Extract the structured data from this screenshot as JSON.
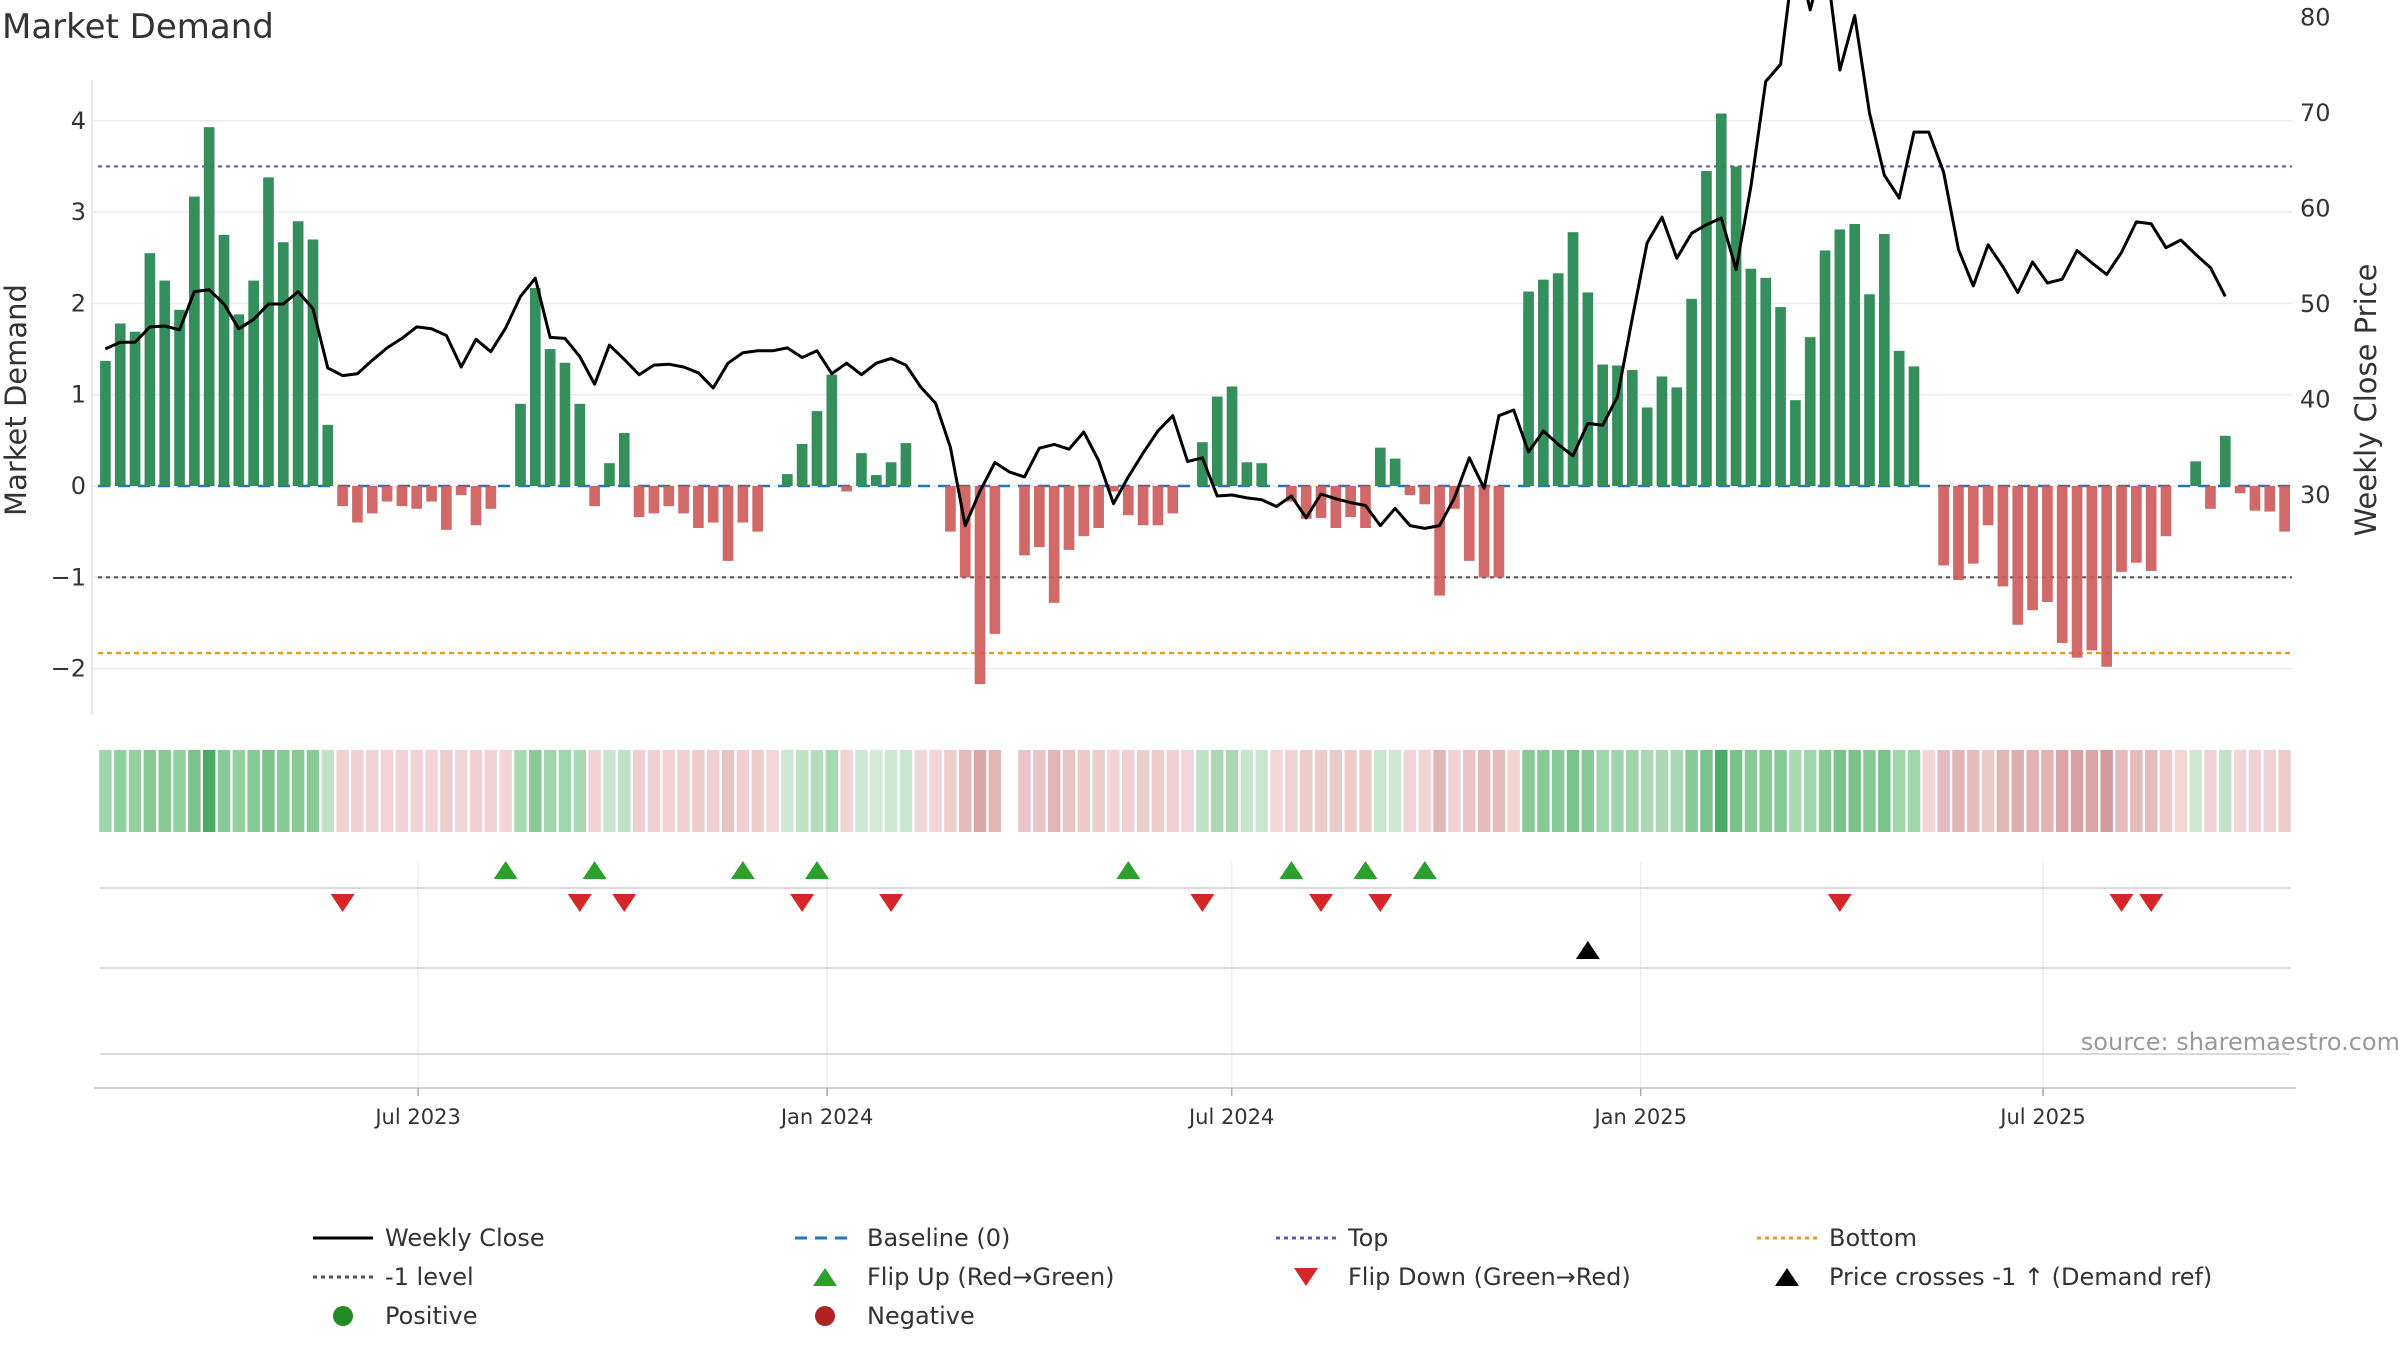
{
  "chart_data": {
    "type": "bar",
    "title": "Market Demand",
    "ylabel_left": "Market Demand",
    "ylabel_right": "Weekly Close Price",
    "ylim_left": [
      -2.6,
      4.2
    ],
    "ylim_right": [
      22.5,
      89
    ],
    "yticks_left": [
      "4",
      "3",
      "2",
      "1",
      "0",
      "−1",
      "−2"
    ],
    "yticks_right": [
      "80",
      "70",
      "60",
      "50",
      "40",
      "30"
    ],
    "x_start": "2023-02-07",
    "x_end": "2025-10-21",
    "date_ticks": [
      "Jul 2023",
      "Jan 2024",
      "Jul 2024",
      "Jan 2025",
      "Jul 2025"
    ],
    "reference_lines": {
      "top": 3.5,
      "minus_one": -1.0,
      "bottom": -1.83,
      "baseline": 0
    },
    "demand": [
      1.37,
      1.78,
      1.69,
      2.55,
      2.25,
      1.93,
      3.17,
      3.93,
      2.75,
      1.88,
      2.25,
      3.38,
      2.67,
      2.9,
      2.7,
      0.67,
      -0.22,
      -0.4,
      -0.3,
      -0.17,
      -0.22,
      -0.25,
      -0.17,
      -0.48,
      -0.1,
      -0.43,
      -0.25,
      0.0,
      0.9,
      2.17,
      1.5,
      1.35,
      0.9,
      -0.22,
      0.25,
      0.58,
      -0.34,
      -0.3,
      -0.22,
      -0.3,
      -0.46,
      -0.4,
      -0.82,
      -0.4,
      -0.5,
      0.0,
      0.13,
      0.46,
      0.82,
      1.22,
      -0.06,
      0.36,
      0.12,
      0.26,
      0.47,
      0.0,
      0.0,
      -0.5,
      -1.0,
      -2.17,
      -1.62,
      0.0,
      -0.76,
      -0.67,
      -1.28,
      -0.7,
      -0.55,
      -0.46,
      -0.06,
      -0.32,
      -0.43,
      -0.43,
      -0.3,
      0.0,
      0.48,
      0.98,
      1.09,
      0.26,
      0.25,
      0.0,
      -0.17,
      -0.36,
      -0.35,
      -0.46,
      -0.34,
      -0.46,
      0.42,
      0.3,
      -0.1,
      -0.2,
      -1.2,
      -0.25,
      -0.82,
      -1.0,
      -1.0,
      0.0,
      2.13,
      2.26,
      2.33,
      2.78,
      2.12,
      1.33,
      1.32,
      1.27,
      0.86,
      1.2,
      1.08,
      2.05,
      3.45,
      4.08,
      3.5,
      2.38,
      2.28,
      1.96,
      0.94,
      1.63,
      2.58,
      2.81,
      2.87,
      2.1,
      2.76,
      1.48,
      1.31,
      0.0,
      -0.87,
      -1.03,
      -0.85,
      -0.43,
      -1.1,
      -1.52,
      -1.36,
      -1.27,
      -1.72,
      -1.88,
      -1.8,
      -1.98,
      -0.94,
      -0.84,
      -0.93,
      -0.55,
      0.0,
      0.27,
      -0.25,
      0.55,
      -0.08,
      -0.27,
      -0.28,
      -0.5
    ],
    "weekly_close": [
      45.3,
      46.0,
      46.0,
      47.6,
      47.7,
      47.3,
      51.3,
      51.5,
      50.0,
      47.4,
      48.4,
      50.0,
      50.0,
      51.3,
      49.5,
      43.3,
      42.5,
      42.7,
      44.1,
      45.4,
      46.4,
      47.6,
      47.4,
      46.7,
      43.4,
      46.3,
      45.0,
      47.5,
      50.8,
      52.7,
      46.5,
      46.4,
      44.5,
      41.6,
      45.7,
      44.2,
      42.6,
      43.6,
      43.7,
      43.4,
      42.8,
      41.2,
      43.8,
      44.9,
      45.1,
      45.1,
      45.4,
      44.4,
      45.1,
      42.7,
      43.8,
      42.6,
      43.8,
      44.3,
      43.6,
      41.3,
      39.6,
      35.0,
      26.8,
      30.4,
      33.4,
      32.4,
      31.9,
      34.9,
      35.3,
      34.8,
      36.6,
      33.6,
      29.1,
      31.9,
      34.4,
      36.7,
      38.3,
      33.5,
      33.9,
      29.9,
      30.0,
      29.7,
      29.5,
      28.8,
      29.9,
      27.6,
      30.1,
      29.6,
      29.2,
      28.9,
      26.8,
      28.6,
      26.8,
      26.5,
      26.8,
      29.7,
      33.9,
      30.7,
      38.3,
      38.9,
      34.5,
      36.7,
      35.3,
      34.1,
      37.5,
      37.3,
      40.3,
      48.5,
      56.4,
      59.1,
      54.8,
      57.4,
      58.3,
      59.0,
      53.6,
      62.3,
      73.3,
      75.1,
      87.5,
      80.8,
      86.8,
      74.5,
      80.2,
      70.0,
      63.5,
      61.1,
      68.0,
      68.0,
      63.8,
      55.7,
      51.9,
      56.2,
      53.9,
      51.2,
      54.4,
      52.2,
      52.6,
      55.6,
      54.3,
      53.1,
      55.4,
      58.6,
      58.4,
      55.9,
      56.7,
      55.2,
      53.8,
      50.8
    ],
    "strip_colors": [
      "#9fd5aa",
      "#93d09f",
      "#93d09f",
      "#87ca95",
      "#87ca95",
      "#93d09f",
      "#79c38b",
      "#4aab63",
      "#87ca95",
      "#93d09f",
      "#87ca95",
      "#79c38b",
      "#87ca95",
      "#87ca95",
      "#87ca95",
      "#c0e3c6",
      "#f0d2d2",
      "#efcfcf",
      "#f0d2d2",
      "#f1d4d4",
      "#f0d2d2",
      "#f0d2d2",
      "#f1d4d4",
      "#edcccc",
      "#f1d4d4",
      "#efcfcf",
      "#f0d2d2",
      "#f2d6d6",
      "#a9d9b3",
      "#87ca95",
      "#9fd5aa",
      "#9fd5aa",
      "#a9d9b3",
      "#f0d2d2",
      "#c8e6cd",
      "#bfe2c5",
      "#efcfcf",
      "#efcfcf",
      "#f0d2d2",
      "#efcfcf",
      "#edcccc",
      "#efcfcf",
      "#e9c4c4",
      "#efcfcf",
      "#edcccc",
      "#f2d6d6",
      "#cde8d2",
      "#bfe2c5",
      "#b3ddbc",
      "#a9d9b3",
      "#f1d4d4",
      "#cde8d2",
      "#d2ead6",
      "#cde8d2",
      "#c8e6cd",
      "#f2d6d6",
      "#f2d6d6",
      "#edcccc",
      "#e5bcbc",
      "#d9a5a5",
      "#e2b5b5",
      "#ffffff",
      "#e9c4c4",
      "#e9c4c4",
      "#e2b5b5",
      "#e9c4c4",
      "#eacaca",
      "#edcccc",
      "#f1d4d4",
      "#efcfcf",
      "#edcccc",
      "#edcccc",
      "#efcfcf",
      "#f2d6d6",
      "#bfe2c5",
      "#a9d9b3",
      "#a9d9b3",
      "#c8e6cd",
      "#c8e6cd",
      "#f2d6d6",
      "#f0d2d2",
      "#edcccc",
      "#edcccc",
      "#eacaca",
      "#edcccc",
      "#eacaca",
      "#c8e6cd",
      "#cde8d2",
      "#f1d4d4",
      "#f0d2d2",
      "#e2b5b5",
      "#f0d2d2",
      "#e9c4c4",
      "#e5bcbc",
      "#e5bcbc",
      "#f2d6d6",
      "#87ca95",
      "#87ca95",
      "#87ca95",
      "#79c38b",
      "#87ca95",
      "#9fd5aa",
      "#9fd5aa",
      "#9fd5aa",
      "#a9d9b3",
      "#a9d9b3",
      "#a9d9b3",
      "#87ca95",
      "#79c38b",
      "#4aab63",
      "#79c38b",
      "#87ca95",
      "#87ca95",
      "#87ca95",
      "#a9d9b3",
      "#9fd5aa",
      "#87ca95",
      "#79c38b",
      "#79c38b",
      "#87ca95",
      "#79c38b",
      "#9fd5aa",
      "#9fd5aa",
      "#f2d6d6",
      "#e5bcbc",
      "#e2b5b5",
      "#e5bcbc",
      "#eacaca",
      "#e2b5b5",
      "#ddaeae",
      "#e0b2b2",
      "#e0b2b2",
      "#d9a5a5",
      "#d6a1a1",
      "#d9a5a5",
      "#d39c9c",
      "#e5bcbc",
      "#e5bcbc",
      "#e5bcbc",
      "#eacaca",
      "#f2d6d6",
      "#cde8d2",
      "#f0d2d2",
      "#c0e3c6",
      "#f1d4d4",
      "#f0d2d2",
      "#f0d2d2",
      "#edcccc"
    ],
    "flip_up_weeks": [
      27,
      33,
      43,
      48,
      69,
      80,
      85,
      89
    ],
    "flip_down_weeks": [
      16,
      32,
      35,
      47,
      53,
      74,
      82,
      86,
      117,
      136,
      138
    ],
    "price_cross_weeks": [
      100
    ],
    "colors": {
      "positive_bar": "#2e8b57",
      "negative_bar": "#cd5c5c",
      "weekly_close": "#000000",
      "baseline": "#1f77b4",
      "top": "#5b5fa8",
      "minus_one": "#555555",
      "bottom": "#e39b1c",
      "flip_up": "#2ca02c",
      "flip_down": "#d62728",
      "price_cross": "#000000",
      "positive_dot": "#228b22",
      "negative_dot": "#b22222"
    },
    "legend": [
      {
        "key": "weekly_close",
        "label": "Weekly Close",
        "symbol": "line"
      },
      {
        "key": "baseline",
        "label": "Baseline (0)",
        "symbol": "dash"
      },
      {
        "key": "top",
        "label": "Top",
        "symbol": "dot"
      },
      {
        "key": "bottom",
        "label": "Bottom",
        "symbol": "dot"
      },
      {
        "key": "minus_one",
        "label": "-1 level",
        "symbol": "dot"
      },
      {
        "key": "flip_up",
        "label": "Flip Up (Red→Green)",
        "symbol": "tri-up"
      },
      {
        "key": "flip_down",
        "label": "Flip Down (Green→Red)",
        "symbol": "tri-down"
      },
      {
        "key": "price_cross",
        "label": "Price crosses -1 ↑ (Demand ref)",
        "symbol": "tri-up"
      },
      {
        "key": "positive_dot",
        "label": "Positive",
        "symbol": "circle"
      },
      {
        "key": "negative_dot",
        "label": "Negative",
        "symbol": "circle"
      }
    ]
  },
  "source": "source: sharemaestro.com"
}
